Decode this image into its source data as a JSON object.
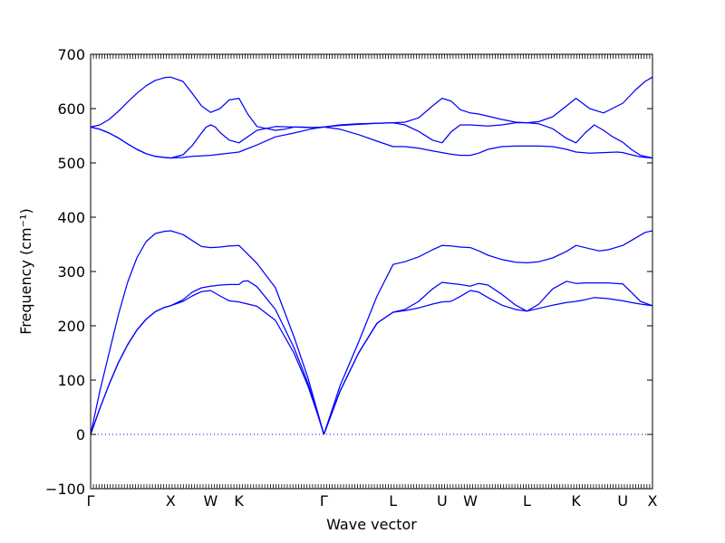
{
  "chart_data": {
    "type": "line",
    "title": "",
    "xlabel": "Wave vector",
    "ylabel": "Frequency (cm⁻¹)",
    "ylim": [
      -100,
      700
    ],
    "yticks": [
      -100,
      0,
      100,
      200,
      300,
      400,
      500,
      600,
      700
    ],
    "xlim": [
      0,
      6.08
    ],
    "grid": false,
    "legend": "none",
    "line_color": "#0000ff",
    "zero_line": {
      "y": 0,
      "style": "dotted",
      "color": "#0000ff"
    },
    "high_symmetry_points": [
      {
        "label": "Γ",
        "x": 0.0
      },
      {
        "label": "X",
        "x": 0.866
      },
      {
        "label": "W",
        "x": 1.299
      },
      {
        "label": "K",
        "x": 1.605
      },
      {
        "label": "Γ",
        "x": 2.524
      },
      {
        "label": "L",
        "x": 3.273
      },
      {
        "label": "U",
        "x": 3.803
      },
      {
        "label": "W",
        "x": 4.109
      },
      {
        "label": "L",
        "x": 4.722
      },
      {
        "label": "K",
        "x": 5.252
      },
      {
        "label": "U",
        "x": 5.759
      },
      {
        "label": "X",
        "x": 6.08
      }
    ],
    "series": [
      {
        "x": [
          0,
          0.1,
          0.2,
          0.3,
          0.4,
          0.5,
          0.6,
          0.7,
          0.8,
          0.866,
          1.0,
          1.1,
          1.2,
          1.299,
          1.4,
          1.5,
          1.605,
          1.8,
          2.0,
          2.2,
          2.35,
          2.45,
          2.524
        ],
        "y": [
          0,
          48,
          92,
          132,
          165,
          192,
          212,
          226,
          234,
          237,
          245,
          255,
          263,
          265,
          255,
          246,
          244,
          236,
          210,
          150,
          90,
          40,
          0
        ]
      },
      {
        "x": [
          0,
          0.1,
          0.2,
          0.3,
          0.4,
          0.5,
          0.6,
          0.7,
          0.8,
          0.866,
          1.0,
          1.1,
          1.2,
          1.299,
          1.4,
          1.5,
          1.605,
          1.65,
          1.7,
          1.8,
          2.0,
          2.2,
          2.35,
          2.45,
          2.524
        ],
        "y": [
          0,
          48,
          92,
          132,
          165,
          192,
          212,
          226,
          234,
          237,
          248,
          262,
          270,
          273,
          275,
          276,
          276,
          282,
          283,
          272,
          230,
          160,
          95,
          42,
          0
        ]
      },
      {
        "x": [
          0,
          0.1,
          0.2,
          0.3,
          0.4,
          0.5,
          0.6,
          0.7,
          0.8,
          0.866,
          1.0,
          1.1,
          1.2,
          1.299,
          1.4,
          1.5,
          1.605,
          1.8,
          2.0,
          2.2,
          2.35,
          2.45,
          2.524
        ],
        "y": [
          0,
          80,
          150,
          220,
          280,
          325,
          355,
          370,
          374,
          375,
          368,
          357,
          346,
          344,
          345,
          347,
          348,
          315,
          270,
          180,
          105,
          45,
          0
        ]
      },
      {
        "x": [
          0,
          0.1,
          0.2,
          0.3,
          0.4,
          0.5,
          0.6,
          0.7,
          0.8,
          0.866,
          1.0,
          1.1,
          1.2,
          1.299,
          1.4,
          1.5,
          1.605,
          1.8,
          2.0,
          2.2,
          2.4,
          2.524
        ],
        "y": [
          566,
          562,
          555,
          546,
          535,
          525,
          517,
          512,
          510,
          509,
          510,
          512,
          513,
          514,
          516,
          518,
          520,
          533,
          548,
          555,
          563,
          566
        ]
      },
      {
        "x": [
          0,
          0.1,
          0.2,
          0.3,
          0.4,
          0.5,
          0.6,
          0.7,
          0.8,
          0.866,
          1.0,
          1.1,
          1.2,
          1.25,
          1.299,
          1.35,
          1.4,
          1.5,
          1.605,
          1.8,
          2.0,
          2.2,
          2.4,
          2.524
        ],
        "y": [
          566,
          562,
          555,
          546,
          535,
          525,
          517,
          512,
          510,
          509,
          515,
          532,
          555,
          566,
          570,
          566,
          556,
          542,
          537,
          560,
          567,
          566,
          565,
          566
        ]
      },
      {
        "x": [
          0,
          0.1,
          0.2,
          0.3,
          0.4,
          0.5,
          0.6,
          0.7,
          0.8,
          0.866,
          1.0,
          1.1,
          1.2,
          1.299,
          1.4,
          1.5,
          1.605,
          1.7,
          1.8,
          2.0,
          2.1,
          2.2,
          2.3,
          2.4,
          2.524
        ],
        "y": [
          566,
          570,
          580,
          595,
          612,
          628,
          642,
          652,
          657,
          658,
          650,
          628,
          605,
          593,
          600,
          616,
          619,
          590,
          567,
          560,
          562,
          566,
          566,
          565,
          566
        ]
      },
      {
        "x": [
          2.524,
          2.7,
          2.9,
          3.1,
          3.273,
          3.4,
          3.55,
          3.7,
          3.803,
          3.9,
          4.0,
          4.109,
          4.2,
          4.3,
          4.45,
          4.6,
          4.722,
          4.85,
          5.0,
          5.15,
          5.252,
          5.4,
          5.5,
          5.6,
          5.759,
          5.9,
          6.0,
          6.08
        ],
        "y": [
          0,
          90,
          170,
          255,
          313,
          318,
          327,
          340,
          348,
          347,
          345,
          344,
          338,
          330,
          322,
          317,
          316,
          318,
          325,
          337,
          348,
          342,
          338,
          340,
          348,
          362,
          372,
          375
        ]
      },
      {
        "x": [
          2.524,
          2.7,
          2.9,
          3.1,
          3.273,
          3.4,
          3.55,
          3.7,
          3.803,
          3.9,
          4.0,
          4.109,
          4.2,
          4.3,
          4.45,
          4.6,
          4.722,
          4.85,
          5.0,
          5.15,
          5.252,
          5.35,
          5.45,
          5.6,
          5.759,
          5.85,
          5.95,
          6.08
        ],
        "y": [
          0,
          80,
          150,
          205,
          225,
          230,
          245,
          268,
          280,
          278,
          276,
          273,
          278,
          275,
          258,
          238,
          227,
          240,
          268,
          282,
          278,
          279,
          279,
          279,
          277,
          262,
          245,
          237
        ]
      },
      {
        "x": [
          2.524,
          2.7,
          2.9,
          3.1,
          3.273,
          3.4,
          3.55,
          3.7,
          3.803,
          3.9,
          4.0,
          4.109,
          4.2,
          4.3,
          4.45,
          4.6,
          4.722,
          4.85,
          5.0,
          5.15,
          5.252,
          5.35,
          5.45,
          5.6,
          5.759,
          5.85,
          5.95,
          6.08
        ],
        "y": [
          0,
          80,
          150,
          205,
          225,
          228,
          233,
          240,
          244,
          245,
          254,
          265,
          262,
          252,
          238,
          230,
          227,
          232,
          238,
          243,
          245,
          248,
          252,
          250,
          246,
          243,
          240,
          237
        ]
      },
      {
        "x": [
          2.524,
          2.7,
          2.9,
          3.1,
          3.273,
          3.4,
          3.55,
          3.7,
          3.803,
          3.9,
          4.0,
          4.109,
          4.2,
          4.3,
          4.45,
          4.6,
          4.722,
          4.85,
          5.0,
          5.15,
          5.252,
          5.4,
          5.55,
          5.759,
          5.9,
          6.0,
          6.08
        ],
        "y": [
          566,
          570,
          572,
          573,
          574,
          575,
          583,
          605,
          619,
          614,
          598,
          592,
          590,
          586,
          580,
          575,
          574,
          576,
          585,
          605,
          619,
          600,
          592,
          610,
          635,
          650,
          658
        ]
      },
      {
        "x": [
          2.524,
          2.7,
          2.9,
          3.1,
          3.273,
          3.4,
          3.55,
          3.7,
          3.803,
          3.9,
          4.0,
          4.109,
          4.2,
          4.3,
          4.45,
          4.6,
          4.722,
          4.85,
          5.0,
          5.15,
          5.252,
          5.35,
          5.45,
          5.55,
          5.65,
          5.759,
          5.85,
          5.95,
          6.08
        ],
        "y": [
          566,
          569,
          571,
          573,
          574,
          570,
          558,
          542,
          537,
          557,
          570,
          570,
          569,
          568,
          570,
          574,
          574,
          572,
          563,
          545,
          537,
          555,
          570,
          560,
          548,
          538,
          525,
          514,
          509
        ]
      },
      {
        "x": [
          2.524,
          2.7,
          2.9,
          3.1,
          3.273,
          3.4,
          3.55,
          3.7,
          3.803,
          3.9,
          4.0,
          4.109,
          4.2,
          4.3,
          4.45,
          4.6,
          4.722,
          4.85,
          5.0,
          5.15,
          5.252,
          5.4,
          5.55,
          5.7,
          5.759,
          5.85,
          5.95,
          6.08
        ],
        "y": [
          566,
          562,
          552,
          540,
          530,
          530,
          527,
          522,
          519,
          516,
          514,
          514,
          518,
          525,
          530,
          531,
          531,
          531,
          530,
          525,
          520,
          518,
          519,
          520,
          519,
          515,
          511,
          509
        ]
      }
    ]
  }
}
